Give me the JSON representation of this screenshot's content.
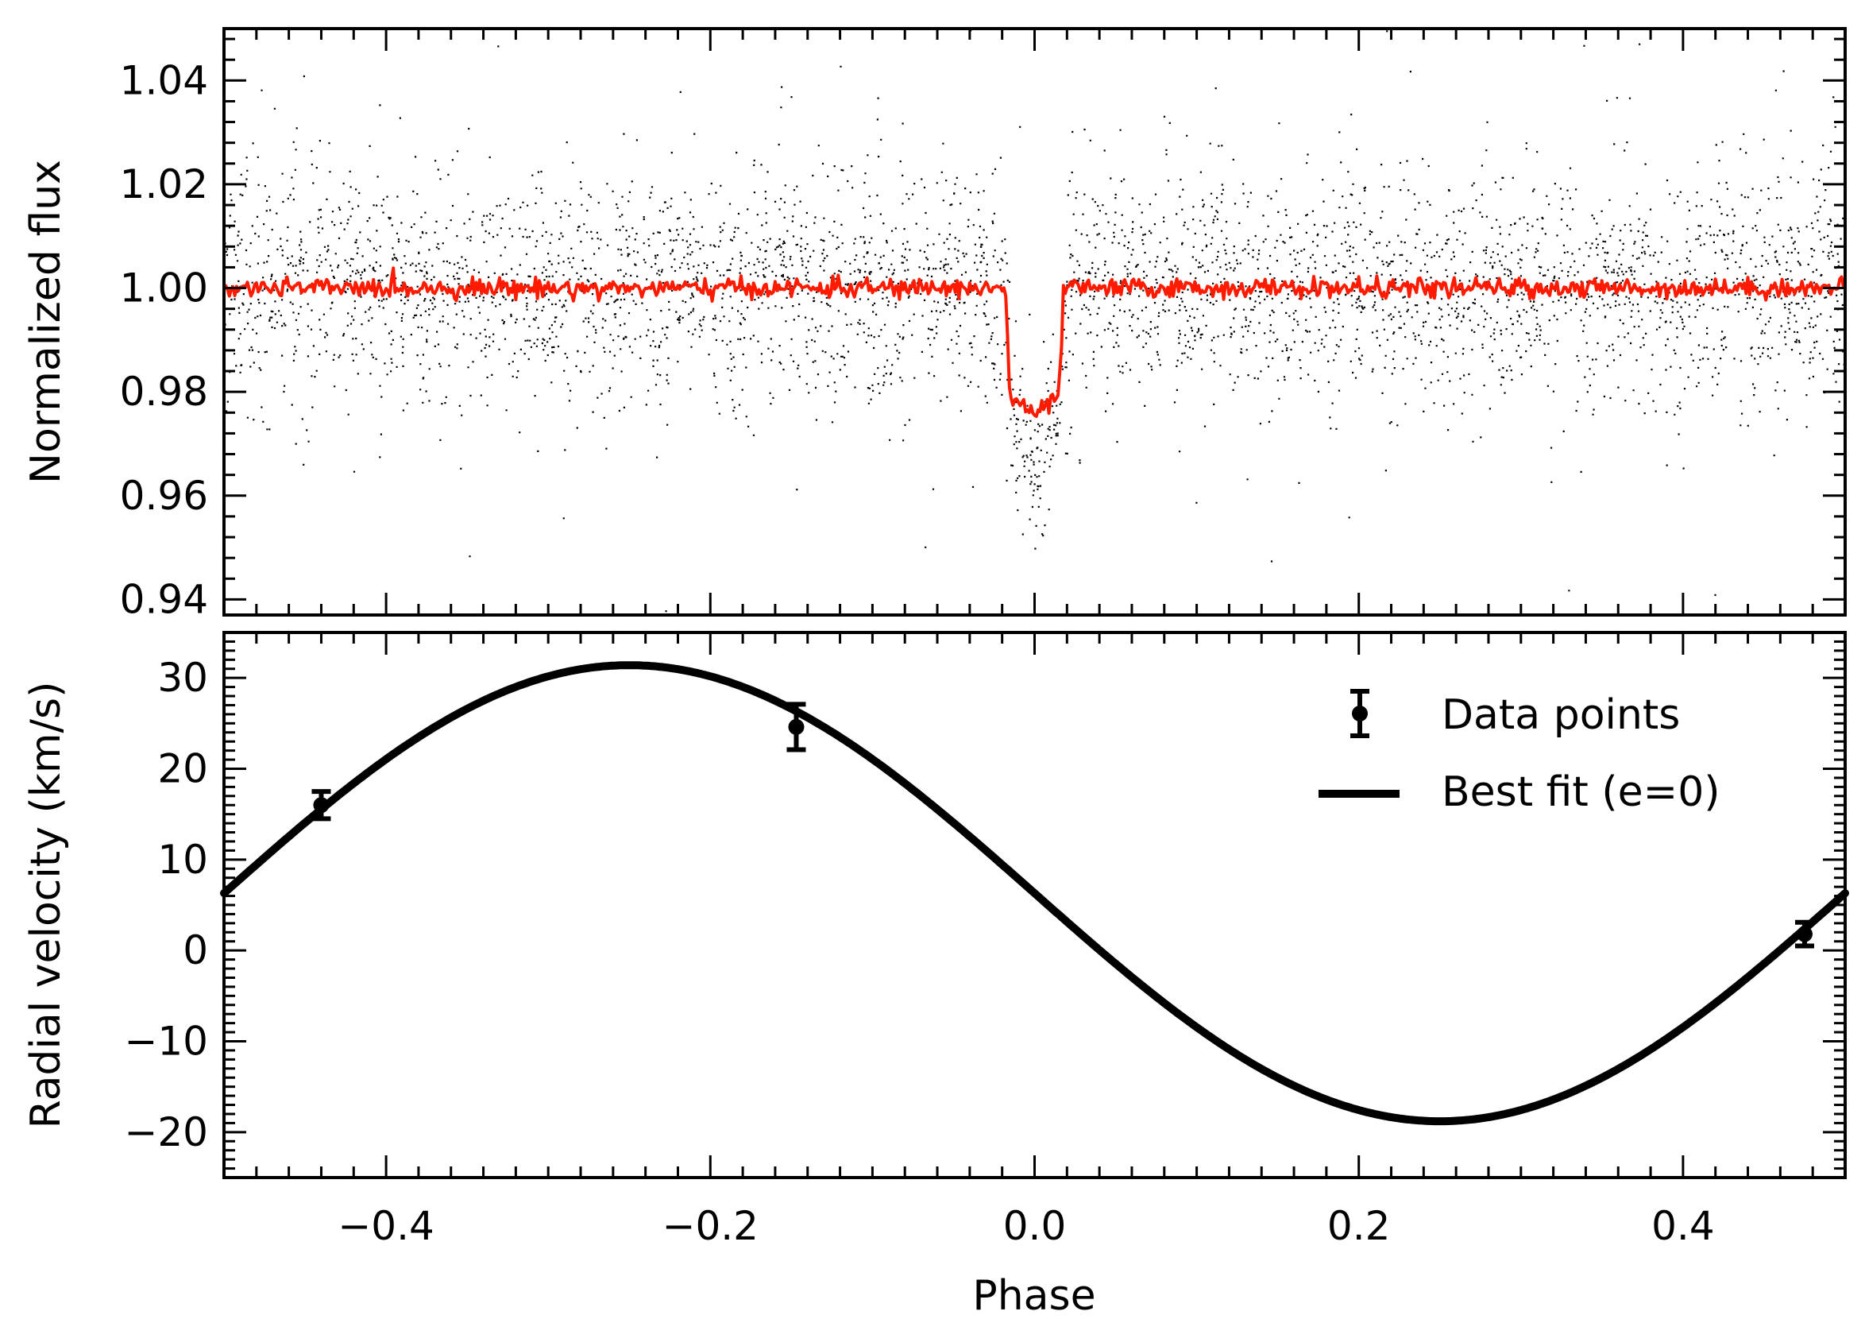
{
  "figure": {
    "shared_xlabel": "Phase"
  },
  "chart_data": [
    {
      "type": "scatter",
      "title": "",
      "xlabel": "",
      "ylabel": "Normalized flux",
      "xlim": [
        -0.5,
        0.5
      ],
      "ylim": [
        0.937,
        1.05
      ],
      "grid": false,
      "x_ticks": [
        -0.4,
        -0.2,
        0.0,
        0.2,
        0.4
      ],
      "y_ticks": [
        0.94,
        0.96,
        0.98,
        1.0,
        1.02,
        1.04
      ],
      "y_tick_labels": [
        "0.94",
        "0.96",
        "0.98",
        "1.00",
        "1.02",
        "1.04"
      ],
      "series": [
        {
          "kind": "scatter",
          "color": "#000000",
          "description_points": "dense cloud of individual photometric measurements centred near 1.00 with scatter of about ±0.015, a transit dip to about 0.965 centred at phase 0.0 between phases -0.018 and 0.018",
          "envelope": {
            "phase": [
              -0.5,
              -0.4,
              -0.3,
              -0.2,
              -0.1,
              -0.02,
              -0.015,
              0.0,
              0.015,
              0.02,
              0.1,
              0.2,
              0.3,
              0.4,
              0.5
            ],
            "center": [
              1.0,
              1.0,
              1.0,
              1.0,
              1.0,
              1.0,
              0.978,
              0.966,
              0.978,
              1.0,
              1.0,
              1.0,
              1.0,
              1.0,
              1.0
            ],
            "spread": [
              0.012,
              0.011,
              0.011,
              0.011,
              0.011,
              0.011,
              0.008,
              0.008,
              0.008,
              0.011,
              0.011,
              0.011,
              0.011,
              0.011,
              0.012
            ]
          }
        },
        {
          "kind": "line",
          "color": "#ff1a00",
          "x": [
            -0.5,
            -0.45,
            -0.4,
            -0.35,
            -0.3,
            -0.25,
            -0.2,
            -0.15,
            -0.1,
            -0.05,
            -0.025,
            -0.018,
            -0.015,
            -0.01,
            -0.005,
            0.0,
            0.005,
            0.01,
            0.015,
            0.018,
            0.025,
            0.05,
            0.1,
            0.15,
            0.2,
            0.25,
            0.3,
            0.35,
            0.4,
            0.45,
            0.5
          ],
          "y": [
            1.0,
            1.0,
            1.0,
            1.0,
            1.0,
            1.0,
            1.0,
            1.0,
            1.0,
            1.0,
            1.0,
            1.0,
            0.978,
            0.978,
            0.977,
            0.975,
            0.977,
            0.978,
            0.979,
            1.0,
            1.0,
            1.0,
            1.0,
            1.0,
            1.0,
            1.0,
            1.0,
            1.0,
            1.0,
            1.0,
            1.0
          ]
        }
      ]
    },
    {
      "type": "line",
      "title": "",
      "xlabel": "Phase",
      "ylabel": "Radial velocity (km/s)",
      "xlim": [
        -0.5,
        0.5
      ],
      "ylim": [
        -25,
        35
      ],
      "grid": false,
      "x_ticks": [
        -0.4,
        -0.2,
        0.0,
        0.2,
        0.4
      ],
      "x_tick_labels": [
        "−0.4",
        "−0.2",
        "0.0",
        "0.2",
        "0.4"
      ],
      "y_ticks": [
        -20,
        -10,
        0,
        10,
        20,
        30
      ],
      "y_tick_labels": [
        "−20",
        "−10",
        "0",
        "10",
        "20",
        "30"
      ],
      "legend_position": "top-right",
      "series": [
        {
          "name": "Data points",
          "kind": "errorbar",
          "color": "#000000",
          "x": [
            -0.44,
            -0.147,
            0.475
          ],
          "y": [
            16.0,
            24.6,
            1.8
          ],
          "yerr": [
            1.5,
            2.5,
            1.3
          ]
        },
        {
          "name": "Best fit (e=0)",
          "kind": "line",
          "color": "#000000",
          "model": {
            "offset": 6.3,
            "semi_amplitude": 25.1
          },
          "x": [
            -0.5,
            -0.4,
            -0.3,
            -0.25,
            -0.2,
            -0.1,
            0.0,
            0.1,
            0.2,
            0.25,
            0.3,
            0.4,
            0.5
          ],
          "y": [
            6.3,
            22.2,
            30.2,
            31.4,
            30.2,
            22.2,
            6.3,
            -9.6,
            -17.6,
            -18.8,
            -17.6,
            -9.6,
            6.3
          ]
        }
      ]
    }
  ]
}
